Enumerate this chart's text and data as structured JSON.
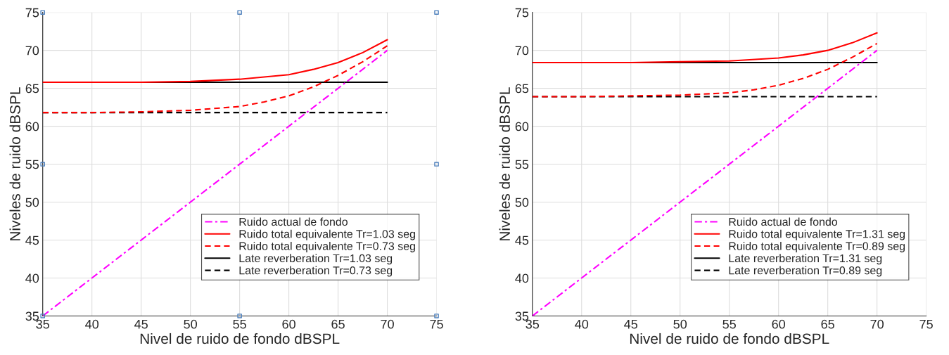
{
  "chart_data": [
    {
      "type": "line",
      "xlabel": "Nivel de ruido de fondo dBSPL",
      "ylabel": "Niveles de ruido dBSPL",
      "xlim": [
        35,
        75
      ],
      "ylim": [
        35,
        75
      ],
      "xticks": [
        35,
        40,
        45,
        50,
        55,
        60,
        65,
        70,
        75
      ],
      "yticks": [
        35,
        40,
        45,
        50,
        55,
        60,
        65,
        70,
        75
      ],
      "grid": true,
      "legend": "bottom right",
      "series": [
        {
          "name": "Ruido actual de fondo",
          "color": "#ff00ff",
          "line_style": "dashdot",
          "x": [
            35,
            70
          ],
          "values": [
            35,
            70
          ]
        },
        {
          "name": "Ruido total equivalente Tr=1.03 seg",
          "color": "#ff0000",
          "line_style": "solid",
          "x": [
            35,
            40,
            45,
            50,
            55,
            60,
            62.5,
            65,
            67.5,
            70
          ],
          "values": [
            65.8,
            65.8,
            65.8,
            65.9,
            66.2,
            66.8,
            67.5,
            68.4,
            69.7,
            71.4
          ]
        },
        {
          "name": "Ruido total equivalente Tr=0.73 seg",
          "color": "#ff0000",
          "line_style": "dashed",
          "x": [
            35,
            40,
            45,
            50,
            55,
            57.5,
            60,
            62.5,
            65,
            67.5,
            70
          ],
          "values": [
            61.8,
            61.8,
            61.9,
            62.1,
            62.6,
            63.2,
            64.0,
            65.2,
            66.7,
            68.5,
            70.6
          ]
        },
        {
          "name": "Late reverberation Tr=1.03 seg",
          "color": "#000000",
          "line_style": "solid",
          "x": [
            35,
            70
          ],
          "values": [
            65.8,
            65.8
          ]
        },
        {
          "name": "Late reverberation Tr=0.73 seg",
          "color": "#000000",
          "line_style": "dashed",
          "x": [
            35,
            70
          ],
          "values": [
            61.8,
            61.8
          ]
        },
        {
          "type": "scatter",
          "color": "#4f81bd",
          "marker": "square",
          "x": [
            35,
            55,
            75,
            35,
            75,
            35,
            55,
            75
          ],
          "values": [
            75,
            75,
            75,
            55,
            55,
            35,
            35,
            35
          ]
        }
      ]
    },
    {
      "type": "line",
      "xlabel": "Nivel de ruido de fondo dBSPL",
      "ylabel": "Niveles de ruido dBSPL",
      "xlim": [
        35,
        75
      ],
      "ylim": [
        35,
        75
      ],
      "xticks": [
        35,
        40,
        45,
        50,
        55,
        60,
        65,
        70,
        75
      ],
      "yticks": [
        35,
        40,
        45,
        50,
        55,
        60,
        65,
        70,
        75
      ],
      "grid": true,
      "legend": "bottom right",
      "series": [
        {
          "name": "Ruido actual de fondo",
          "color": "#ff00ff",
          "line_style": "dashdot",
          "x": [
            35,
            70
          ],
          "values": [
            35,
            70
          ]
        },
        {
          "name": "Ruido total equivalente Tr=1.31 seg",
          "color": "#ff0000",
          "line_style": "solid",
          "x": [
            35,
            40,
            45,
            50,
            55,
            60,
            62.5,
            65,
            67.5,
            70
          ],
          "values": [
            68.4,
            68.4,
            68.4,
            68.5,
            68.6,
            69.0,
            69.4,
            70.0,
            71.0,
            72.3
          ]
        },
        {
          "name": "Ruido total equivalente Tr=0.89 seg",
          "color": "#ff0000",
          "line_style": "dashed",
          "x": [
            35,
            40,
            45,
            50,
            55,
            57.5,
            60,
            62.5,
            65,
            67.5,
            70
          ],
          "values": [
            63.9,
            63.9,
            64.0,
            64.1,
            64.4,
            64.8,
            65.4,
            66.3,
            67.5,
            69.1,
            70.9
          ]
        },
        {
          "name": "Late reverberation Tr=1.31 seg",
          "color": "#000000",
          "line_style": "solid",
          "x": [
            35,
            70
          ],
          "values": [
            68.4,
            68.4
          ]
        },
        {
          "name": "Late reverberation Tr=0.89 seg",
          "color": "#000000",
          "line_style": "dashed",
          "x": [
            35,
            70
          ],
          "values": [
            63.9,
            63.9
          ]
        }
      ]
    }
  ]
}
